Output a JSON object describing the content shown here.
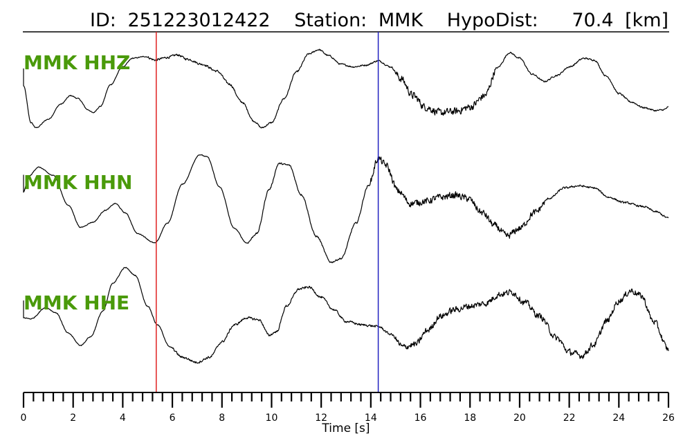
{
  "header": {
    "id_label": "ID:",
    "id_value": "251223012422",
    "station_label": "Station:",
    "station_value": "MMK",
    "hypodist_label": "HypoDist:",
    "hypodist_value": "70.4",
    "hypodist_unit": "[km]"
  },
  "colors": {
    "trace": "#000000",
    "channel_label": "#4a9a0a",
    "p_pick": "#e02020",
    "s_pick": "#2020c0",
    "axis": "#000000"
  },
  "chart_data": {
    "type": "line",
    "title": "ID: 251223012422   Station: MMK   HypoDist:     70.4 [km]",
    "xlabel": "Time [s]",
    "ylabel": "",
    "xlim": [
      0,
      26
    ],
    "x_major_ticks": [
      0,
      2,
      4,
      6,
      8,
      10,
      12,
      14,
      16,
      18,
      20,
      22,
      24,
      26
    ],
    "x_minor_step": 0.4,
    "picks": [
      {
        "phase": "P",
        "time": 5.35,
        "color": "#e02020"
      },
      {
        "phase": "S",
        "time": 14.3,
        "color": "#2020c0"
      }
    ],
    "series": [
      {
        "name": "MMK HHZ",
        "noise": [
          [
            0,
            5,
            0.015
          ],
          [
            5,
            9,
            0.035
          ],
          [
            9,
            15,
            0.025
          ],
          [
            15,
            19,
            0.12
          ],
          [
            19,
            26,
            0.025
          ]
        ],
        "points": [
          [
            0,
            0.18
          ],
          [
            0.3,
            -0.68
          ],
          [
            0.5,
            -0.8
          ],
          [
            1,
            -0.6
          ],
          [
            1.5,
            -0.25
          ],
          [
            1.9,
            -0.05
          ],
          [
            2.2,
            -0.12
          ],
          [
            2.6,
            -0.38
          ],
          [
            2.8,
            -0.45
          ],
          [
            3.1,
            -0.3
          ],
          [
            3.5,
            0.2
          ],
          [
            4,
            0.62
          ],
          [
            4.4,
            0.82
          ],
          [
            4.9,
            0.86
          ],
          [
            5.3,
            0.78
          ],
          [
            5.8,
            0.84
          ],
          [
            6.2,
            0.9
          ],
          [
            6.6,
            0.8
          ],
          [
            7.2,
            0.68
          ],
          [
            7.8,
            0.52
          ],
          [
            8.3,
            0.22
          ],
          [
            8.8,
            -0.2
          ],
          [
            9.3,
            -0.65
          ],
          [
            9.6,
            -0.8
          ],
          [
            10,
            -0.68
          ],
          [
            10.5,
            -0.12
          ],
          [
            11,
            0.5
          ],
          [
            11.5,
            0.92
          ],
          [
            11.9,
            1.02
          ],
          [
            12.3,
            0.88
          ],
          [
            12.8,
            0.68
          ],
          [
            13.3,
            0.62
          ],
          [
            13.8,
            0.66
          ],
          [
            14.3,
            0.76
          ],
          [
            14.8,
            0.62
          ],
          [
            15.2,
            0.35
          ],
          [
            15.7,
            -0.05
          ],
          [
            16.2,
            -0.32
          ],
          [
            16.8,
            -0.45
          ],
          [
            17.4,
            -0.42
          ],
          [
            18,
            -0.32
          ],
          [
            18.6,
            -0.05
          ],
          [
            19.1,
            0.6
          ],
          [
            19.6,
            0.95
          ],
          [
            20,
            0.82
          ],
          [
            20.5,
            0.45
          ],
          [
            21,
            0.28
          ],
          [
            21.5,
            0.42
          ],
          [
            22,
            0.62
          ],
          [
            22.6,
            0.82
          ],
          [
            23,
            0.78
          ],
          [
            23.5,
            0.4
          ],
          [
            24,
            0
          ],
          [
            24.5,
            -0.2
          ],
          [
            25,
            -0.33
          ],
          [
            25.5,
            -0.4
          ],
          [
            25.8,
            -0.38
          ],
          [
            26,
            -0.32
          ]
        ]
      },
      {
        "name": "MMK HHN",
        "noise": [
          [
            0,
            9,
            0.01
          ],
          [
            9,
            14,
            0.022
          ],
          [
            14,
            21,
            0.09
          ],
          [
            21,
            26,
            0.025
          ]
        ],
        "points": [
          [
            0,
            0.3
          ],
          [
            0.2,
            0.6
          ],
          [
            0.6,
            0.78
          ],
          [
            1.2,
            0.62
          ],
          [
            1.8,
            0.05
          ],
          [
            2.3,
            -0.38
          ],
          [
            2.8,
            -0.28
          ],
          [
            3.3,
            -0.05
          ],
          [
            3.7,
            0.08
          ],
          [
            4.1,
            -0.1
          ],
          [
            4.6,
            -0.5
          ],
          [
            5.3,
            -0.68
          ],
          [
            5.8,
            -0.3
          ],
          [
            6.4,
            0.45
          ],
          [
            7.1,
            1.02
          ],
          [
            7.4,
            0.98
          ],
          [
            7.9,
            0.4
          ],
          [
            8.5,
            -0.4
          ],
          [
            9,
            -0.68
          ],
          [
            9.4,
            -0.5
          ],
          [
            9.9,
            0.35
          ],
          [
            10.3,
            0.85
          ],
          [
            10.7,
            0.82
          ],
          [
            11.2,
            0.25
          ],
          [
            11.8,
            -0.55
          ],
          [
            12.4,
            -1.05
          ],
          [
            12.8,
            -0.98
          ],
          [
            13.4,
            -0.3
          ],
          [
            13.9,
            0.42
          ],
          [
            14.3,
            0.95
          ],
          [
            14.6,
            0.82
          ],
          [
            15.1,
            0.32
          ],
          [
            15.6,
            0.08
          ],
          [
            16.2,
            0.12
          ],
          [
            16.8,
            0.2
          ],
          [
            17.4,
            0.24
          ],
          [
            17.9,
            0.18
          ],
          [
            18.5,
            -0.1
          ],
          [
            19,
            -0.35
          ],
          [
            19.5,
            -0.55
          ],
          [
            20,
            -0.4
          ],
          [
            20.6,
            -0.1
          ],
          [
            21.2,
            0.18
          ],
          [
            21.8,
            0.38
          ],
          [
            22.4,
            0.42
          ],
          [
            23,
            0.38
          ],
          [
            23.6,
            0.2
          ],
          [
            24.2,
            0.1
          ],
          [
            25,
            0.02
          ],
          [
            25.5,
            -0.08
          ],
          [
            26,
            -0.2
          ]
        ]
      },
      {
        "name": "MMK HHE",
        "noise": [
          [
            0,
            6,
            0.012
          ],
          [
            6,
            15,
            0.03
          ],
          [
            15,
            26,
            0.085
          ]
        ],
        "points": [
          [
            0,
            0.12
          ],
          [
            0.3,
            0.1
          ],
          [
            0.9,
            0.32
          ],
          [
            1.3,
            0.22
          ],
          [
            1.8,
            -0.18
          ],
          [
            2.3,
            -0.42
          ],
          [
            2.7,
            -0.25
          ],
          [
            3.2,
            0.25
          ],
          [
            3.6,
            0.8
          ],
          [
            4.1,
            1.1
          ],
          [
            4.5,
            0.95
          ],
          [
            5,
            0.35
          ],
          [
            5.4,
            -0.02
          ],
          [
            5.9,
            -0.45
          ],
          [
            6.4,
            -0.65
          ],
          [
            7,
            -0.75
          ],
          [
            7.5,
            -0.65
          ],
          [
            8,
            -0.35
          ],
          [
            8.5,
            -0.02
          ],
          [
            9,
            0.12
          ],
          [
            9.5,
            0.08
          ],
          [
            9.9,
            -0.22
          ],
          [
            10.2,
            -0.15
          ],
          [
            10.6,
            0.35
          ],
          [
            11.1,
            0.68
          ],
          [
            11.5,
            0.72
          ],
          [
            12,
            0.52
          ],
          [
            12.5,
            0.28
          ],
          [
            13,
            0.05
          ],
          [
            13.7,
            -0.02
          ],
          [
            14.3,
            -0.05
          ],
          [
            14.8,
            -0.2
          ],
          [
            15.3,
            -0.45
          ],
          [
            15.8,
            -0.4
          ],
          [
            16.3,
            -0.12
          ],
          [
            16.8,
            0.15
          ],
          [
            17.4,
            0.28
          ],
          [
            18,
            0.35
          ],
          [
            18.6,
            0.4
          ],
          [
            19.2,
            0.58
          ],
          [
            19.7,
            0.62
          ],
          [
            20.2,
            0.42
          ],
          [
            20.8,
            0.15
          ],
          [
            21.5,
            -0.28
          ],
          [
            22,
            -0.55
          ],
          [
            22.5,
            -0.62
          ],
          [
            23,
            -0.4
          ],
          [
            23.5,
            0.05
          ],
          [
            24,
            0.45
          ],
          [
            24.5,
            0.65
          ],
          [
            24.9,
            0.55
          ],
          [
            25.4,
            0.05
          ],
          [
            26,
            -0.5
          ]
        ]
      }
    ]
  }
}
